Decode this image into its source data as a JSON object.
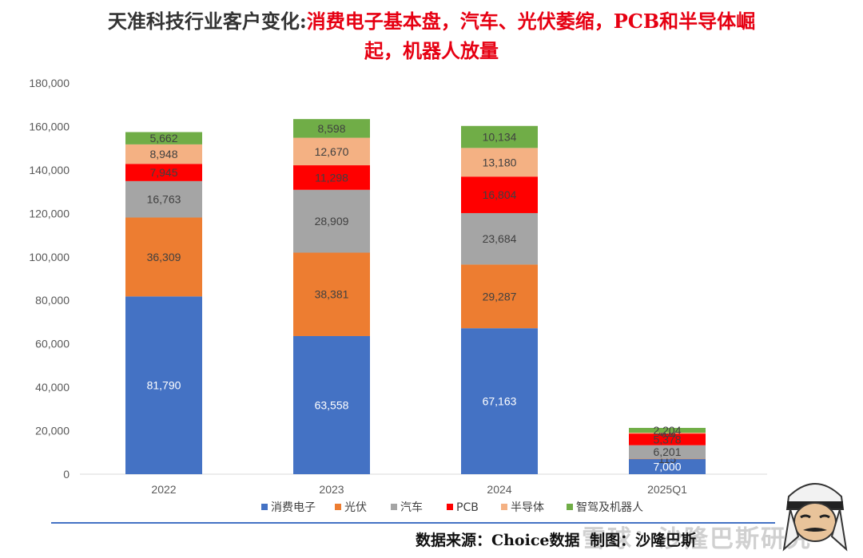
{
  "title": {
    "prefix": "天准科技行业客户变化:",
    "highlight_line1": "消费电子基本盘，汽车、光伏萎缩，PCB和半导体崛",
    "highlight_line2": "起，机器人放量"
  },
  "source": {
    "label": "数据来源：Choice数据",
    "note": "制图：沙隆巴斯"
  },
  "watermark": "雪球：沙隆巴斯研究",
  "colors": {
    "消费电子": "#4472c4",
    "光伏": "#ed7d31",
    "汽车": "#a5a5a5",
    "PCB": "#ff0000",
    "半导体": "#f4b183",
    "智驾及机器人": "#70ad47"
  },
  "chart_data": {
    "type": "bar",
    "stacked": true,
    "categories": [
      "2022",
      "2023",
      "2024",
      "2025Q1"
    ],
    "series": [
      {
        "name": "消费电子",
        "values": [
          81790,
          63558,
          67163,
          7000
        ]
      },
      {
        "name": "光伏",
        "values": [
          36309,
          38381,
          29287,
          115
        ]
      },
      {
        "name": "汽车",
        "values": [
          16763,
          28909,
          23684,
          6201
        ]
      },
      {
        "name": "PCB",
        "values": [
          7945,
          11298,
          16804,
          5378
        ]
      },
      {
        "name": "半导体",
        "values": [
          8948,
          12670,
          13180,
          404
        ]
      },
      {
        "name": "智驾及机器人",
        "values": [
          5662,
          8598,
          10134,
          2204
        ]
      }
    ],
    "labels": [
      [
        "81,790",
        "63,558",
        "67,163",
        "7,000"
      ],
      [
        "36,309",
        "38,381",
        "29,287",
        "115"
      ],
      [
        "16,763",
        "28,909",
        "23,684",
        "6,201"
      ],
      [
        "7,945",
        "11,298",
        "16,804",
        "5,378"
      ],
      [
        "8,948",
        "12,670",
        "13,180",
        "404"
      ],
      [
        "5,662",
        "8,598",
        "10,134",
        "2,204"
      ]
    ],
    "yticks": [
      "0",
      "20,000",
      "40,000",
      "60,000",
      "80,000",
      "100,000",
      "120,000",
      "140,000",
      "160,000",
      "180,000"
    ],
    "ylim": [
      0,
      180000
    ],
    "grid": false,
    "legend": "bottom"
  }
}
